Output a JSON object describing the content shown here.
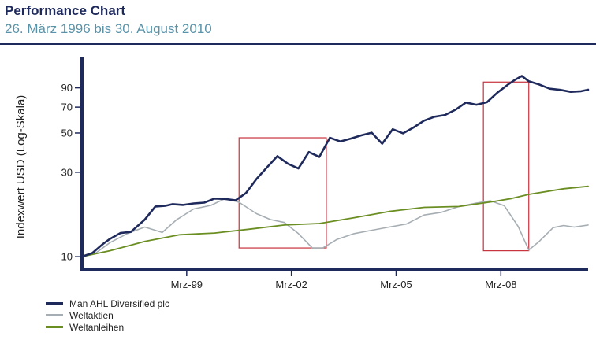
{
  "header": {
    "title": "Performance Chart",
    "subtitle": "26. März 1996 bis 30. August 2010"
  },
  "colors": {
    "ahl": "#1f2a5c",
    "aktien": "#a6aeb3",
    "anleihen": "#6b8e23",
    "highlight": "#c8323c",
    "axis": "#1f2a5c"
  },
  "legend": [
    {
      "label": "Man AHL Diversified plc",
      "series": "ahl"
    },
    {
      "label": "Weltaktien",
      "series": "aktien"
    },
    {
      "label": "Weltanleihen",
      "series": "anleihen"
    }
  ],
  "chart_data": {
    "type": "line",
    "title": "Performance Chart",
    "subtitle": "26. März 1996 bis 30. August 2010",
    "ylabel": "Indexwert USD (Log-Skala)",
    "xlabel": "",
    "yscale": "log",
    "ylim": [
      8.5,
      135
    ],
    "xlim": [
      1996.2,
      2010.7
    ],
    "yticks": [
      10,
      30,
      50,
      70,
      90
    ],
    "xticks": [
      {
        "value": 1999.2,
        "label": "Mrz-99"
      },
      {
        "value": 2002.2,
        "label": "Mrz-02"
      },
      {
        "value": 2005.2,
        "label": "Mrz-05"
      },
      {
        "value": 2008.2,
        "label": "Mrz-08"
      }
    ],
    "highlights": [
      {
        "x0": 2000.7,
        "x1": 2003.2,
        "y0": 11.2,
        "y1": 47
      },
      {
        "x0": 2007.7,
        "x1": 2009.0,
        "y0": 10.8,
        "y1": 97
      }
    ],
    "series": [
      {
        "name": "Man AHL Diversified plc",
        "key": "ahl",
        "x": [
          1996.2,
          1996.5,
          1996.8,
          1997.0,
          1997.3,
          1997.6,
          1998.0,
          1998.3,
          1998.6,
          1998.8,
          1999.1,
          1999.4,
          1999.7,
          2000.0,
          2000.3,
          2000.6,
          2000.9,
          2001.2,
          2001.5,
          2001.8,
          2002.1,
          2002.4,
          2002.7,
          2003.0,
          2003.3,
          2003.6,
          2003.9,
          2004.2,
          2004.5,
          2004.8,
          2005.1,
          2005.4,
          2005.7,
          2006.0,
          2006.3,
          2006.6,
          2006.9,
          2007.2,
          2007.5,
          2007.8,
          2008.1,
          2008.4,
          2008.6,
          2008.8,
          2009.0,
          2009.3,
          2009.6,
          2009.9,
          2010.2,
          2010.5,
          2010.7
        ],
        "values": [
          10,
          10.5,
          11.8,
          12.6,
          13.6,
          13.8,
          16.2,
          19.2,
          19.4,
          19.8,
          19.6,
          20.0,
          20.2,
          21.3,
          21.2,
          20.8,
          22.9,
          27.5,
          32,
          37,
          33.5,
          31.5,
          39,
          36.6,
          47,
          44.8,
          46.5,
          48.5,
          50.2,
          43.5,
          52.5,
          49.8,
          53.7,
          58.7,
          61.8,
          63.2,
          67.7,
          74.3,
          72.2,
          74.6,
          84.5,
          93.8,
          99.7,
          105,
          98,
          93.9,
          89,
          87.6,
          85.4,
          86.1,
          87.8
        ]
      },
      {
        "name": "Weltaktien",
        "key": "aktien",
        "x": [
          1996.2,
          1996.6,
          1997.0,
          1997.5,
          1998.0,
          1998.5,
          1998.9,
          1999.4,
          1999.9,
          2000.3,
          2000.7,
          2001.2,
          2001.6,
          2002.0,
          2002.4,
          2002.8,
          2003.1,
          2003.5,
          2004.0,
          2004.5,
          2005.0,
          2005.5,
          2006.0,
          2006.5,
          2007.0,
          2007.5,
          2007.9,
          2008.3,
          2008.7,
          2009.0,
          2009.3,
          2009.7,
          2010.0,
          2010.3,
          2010.7
        ],
        "values": [
          10,
          10.5,
          12.0,
          13.5,
          14.7,
          13.7,
          16.1,
          18.6,
          19.5,
          21.3,
          20.3,
          17.5,
          16.2,
          15.6,
          13.5,
          11.2,
          11.2,
          12.5,
          13.5,
          14.1,
          14.7,
          15.3,
          17.2,
          17.8,
          19.2,
          20.1,
          20.7,
          19.4,
          14.8,
          10.9,
          12.2,
          14.6,
          15.0,
          14.7,
          15.1
        ]
      },
      {
        "name": "Weltanleihen",
        "key": "anleihen",
        "x": [
          1996.2,
          1997.0,
          1998.0,
          1999.0,
          2000.0,
          2001.0,
          2002.0,
          2003.0,
          2004.0,
          2005.0,
          2006.0,
          2007.0,
          2008.0,
          2008.5,
          2009.0,
          2010.0,
          2010.7
        ],
        "values": [
          10,
          10.8,
          12.2,
          13.3,
          13.6,
          14.3,
          15.1,
          15.4,
          16.6,
          18.0,
          19.0,
          19.2,
          20.5,
          21.3,
          22.5,
          24.2,
          25.0
        ]
      }
    ]
  }
}
